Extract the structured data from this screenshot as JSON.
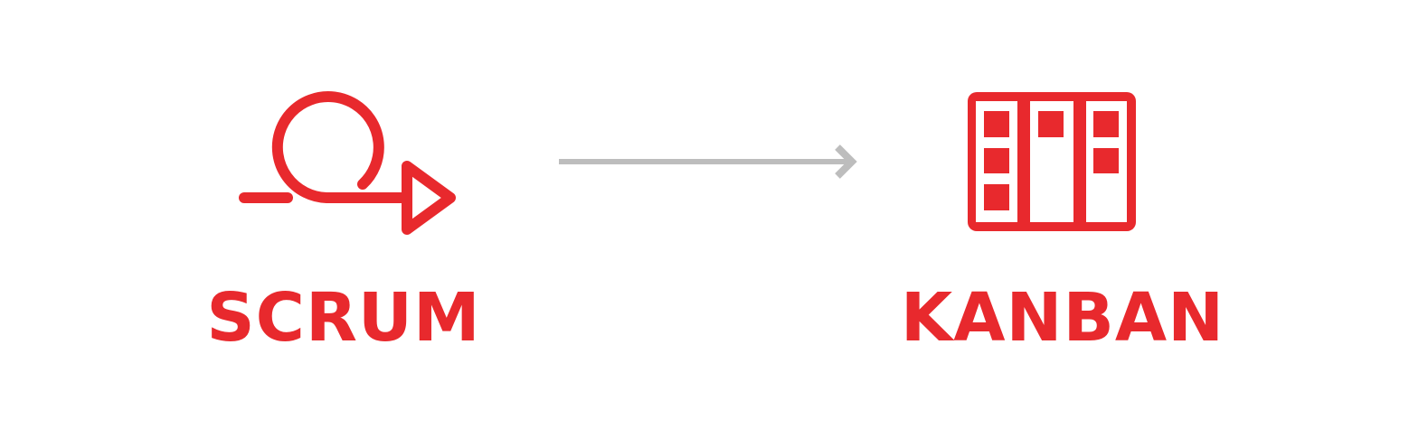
{
  "colors": {
    "accent": "#e8292d",
    "arrow": "#bdbdbd",
    "background": "#ffffff"
  },
  "scrum": {
    "label": "SCRUM",
    "icon": "scrum-cycle-icon"
  },
  "kanban": {
    "label": "KANBAN",
    "icon": "kanban-board-icon"
  },
  "connector": {
    "icon": "arrow-right-icon"
  }
}
